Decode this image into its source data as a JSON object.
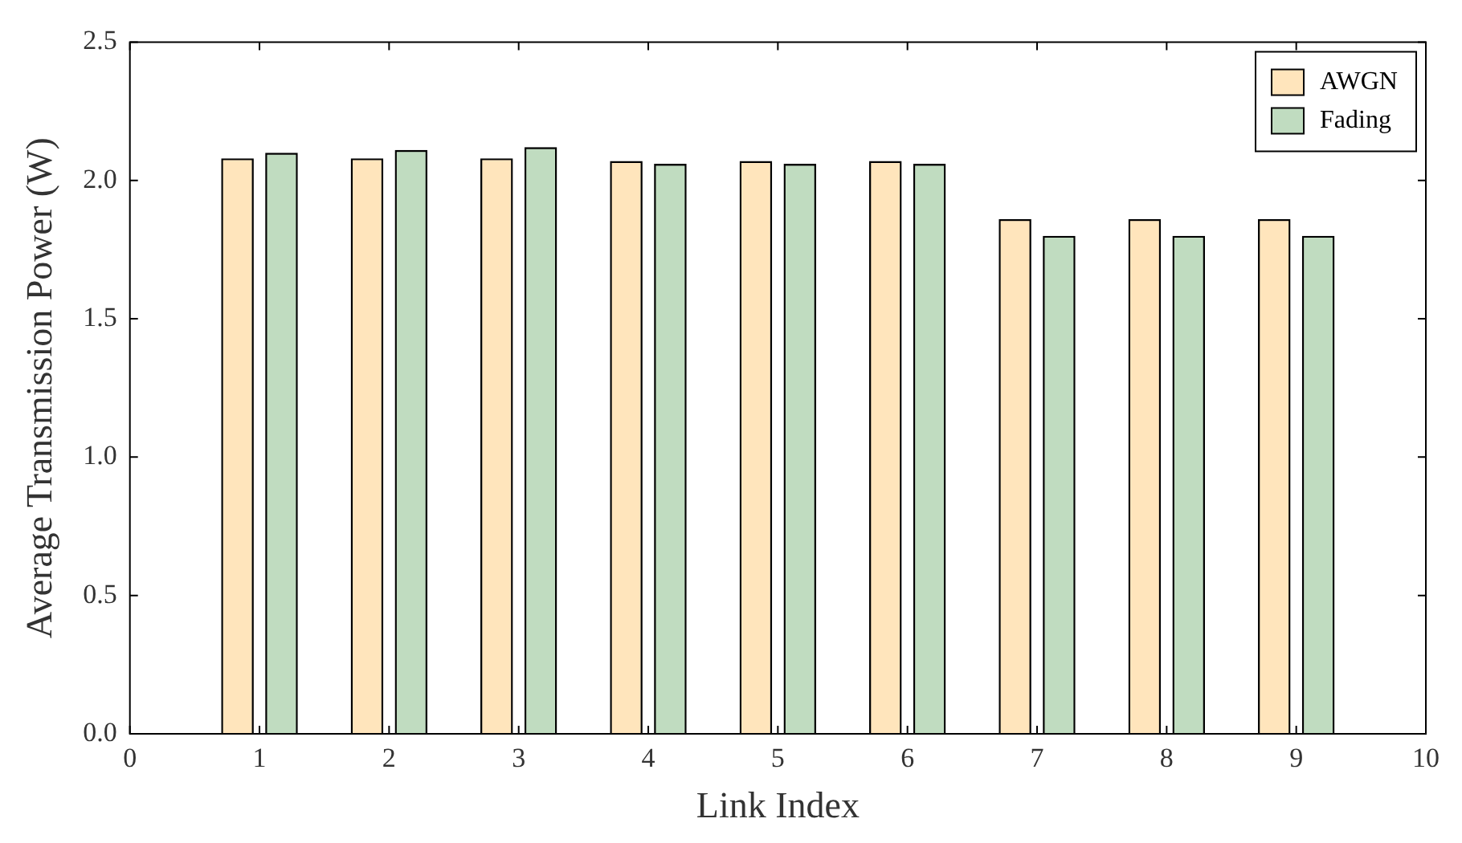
{
  "chart_data": {
    "type": "bar",
    "xlabel": "Link Index",
    "ylabel": "Average Transmission Power (W)",
    "x": [
      1,
      2,
      3,
      4,
      5,
      6,
      7,
      8,
      9
    ],
    "series": [
      {
        "name": "AWGN",
        "color": "#ffaa22",
        "values": [
          2.08,
          2.08,
          2.08,
          2.07,
          2.07,
          2.07,
          1.86,
          1.86,
          1.86
        ]
      },
      {
        "name": "Fading",
        "color": "#2e8b2e",
        "values": [
          2.1,
          2.11,
          2.12,
          2.06,
          2.06,
          2.06,
          1.8,
          1.8,
          1.8
        ]
      }
    ],
    "xlim": [
      0,
      10
    ],
    "xticks": [
      0,
      1,
      2,
      3,
      4,
      5,
      6,
      7,
      8,
      9,
      10
    ],
    "ylim": [
      0,
      2.5
    ],
    "yticks": [
      {
        "value": 0,
        "label": "0.0"
      },
      {
        "value": 0.5,
        "label": "0.5"
      },
      {
        "value": 1,
        "label": "1.0"
      },
      {
        "value": 1.5,
        "label": "1.5"
      },
      {
        "value": 2,
        "label": "2.0"
      },
      {
        "value": 2.5,
        "label": "2.5"
      }
    ],
    "grid": false,
    "legend": "top right"
  }
}
